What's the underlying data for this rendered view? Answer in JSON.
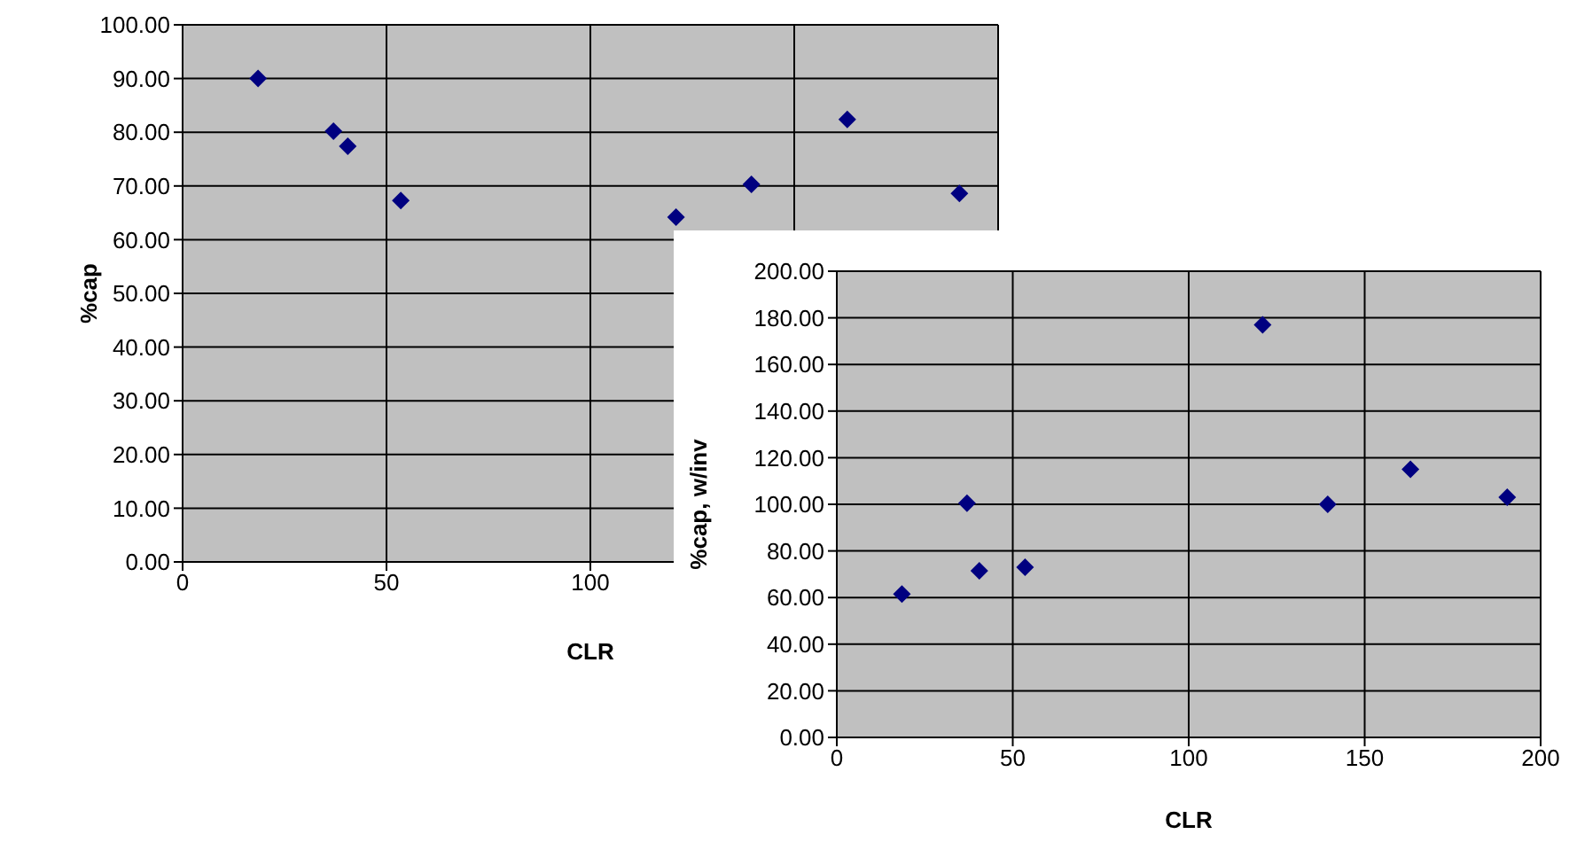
{
  "chart_data": [
    {
      "type": "scatter",
      "xlabel": "CLR",
      "ylabel": "%cap",
      "x": [
        18.5,
        37,
        40.5,
        53.5,
        121,
        139.5,
        163,
        190.5
      ],
      "series": [
        {
          "color": "#000080",
          "values": [
            90,
            80.2,
            77.4,
            67.3,
            64.2,
            70.3,
            82.4,
            68.6
          ]
        }
      ],
      "xlim": [
        0,
        200
      ],
      "xticks": [
        0,
        50,
        100,
        {
          "value": 150,
          "label": null
        },
        {
          "value": 200,
          "label": null
        }
      ],
      "ylim": [
        0,
        100
      ],
      "yticks": [
        {
          "value": 0,
          "label": "0.00"
        },
        {
          "value": 10,
          "label": "10.00"
        },
        {
          "value": 20,
          "label": "20.00"
        },
        {
          "value": 30,
          "label": "30.00"
        },
        {
          "value": 40,
          "label": "40.00"
        },
        {
          "value": 50,
          "label": "50.00"
        },
        {
          "value": 60,
          "label": "60.00"
        },
        {
          "value": 70,
          "label": "70.00"
        },
        {
          "value": 80,
          "label": "80.00"
        },
        {
          "value": 90,
          "label": "90.00"
        },
        {
          "value": 100,
          "label": "100.00"
        }
      ],
      "grid": true,
      "marker": "diamond",
      "legend": false
    },
    {
      "type": "scatter",
      "xlabel": "CLR",
      "ylabel": "%cap, w/inv",
      "x": [
        18.5,
        37,
        40.5,
        53.5,
        121,
        139.5,
        163,
        190.5
      ],
      "series": [
        {
          "color": "#000080",
          "values": [
            61.5,
            100.5,
            71.5,
            73,
            177,
            100,
            115,
            103
          ]
        }
      ],
      "xlim": [
        0,
        200
      ],
      "xticks": [
        0,
        50,
        100,
        150,
        200
      ],
      "ylim": [
        0,
        200
      ],
      "yticks": [
        {
          "value": 0,
          "label": "0.00"
        },
        {
          "value": 20,
          "label": "20.00"
        },
        {
          "value": 40,
          "label": "40.00"
        },
        {
          "value": 60,
          "label": "60.00"
        },
        {
          "value": 80,
          "label": "80.00"
        },
        {
          "value": 100,
          "label": "100.00"
        },
        {
          "value": 120,
          "label": "120.00"
        },
        {
          "value": 140,
          "label": "140.00"
        },
        {
          "value": 160,
          "label": "160.00"
        },
        {
          "value": 180,
          "label": "180.00"
        },
        {
          "value": 200,
          "label": "200.00"
        }
      ],
      "grid": true,
      "marker": "diamond",
      "legend": false
    }
  ]
}
